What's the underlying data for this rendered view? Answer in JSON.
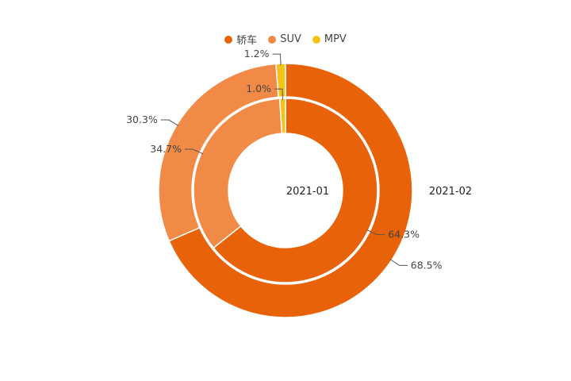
{
  "chart_data": {
    "type": "pie",
    "subtype": "nested-donut",
    "categories": [
      "轿车",
      "SUV",
      "MPV"
    ],
    "colors": [
      "#e8620a",
      "#f08a46",
      "#f5c216"
    ],
    "legend_position": "top",
    "series": [
      {
        "name": "2021-01",
        "ring": "inner",
        "values": [
          64.3,
          34.7,
          1.0
        ],
        "labels": [
          "64.3%",
          "34.7%",
          "1.0%"
        ]
      },
      {
        "name": "2021-02",
        "ring": "outer",
        "values": [
          68.5,
          30.3,
          1.2
        ],
        "labels": [
          "68.5%",
          "30.3%",
          "1.2%"
        ]
      }
    ]
  }
}
